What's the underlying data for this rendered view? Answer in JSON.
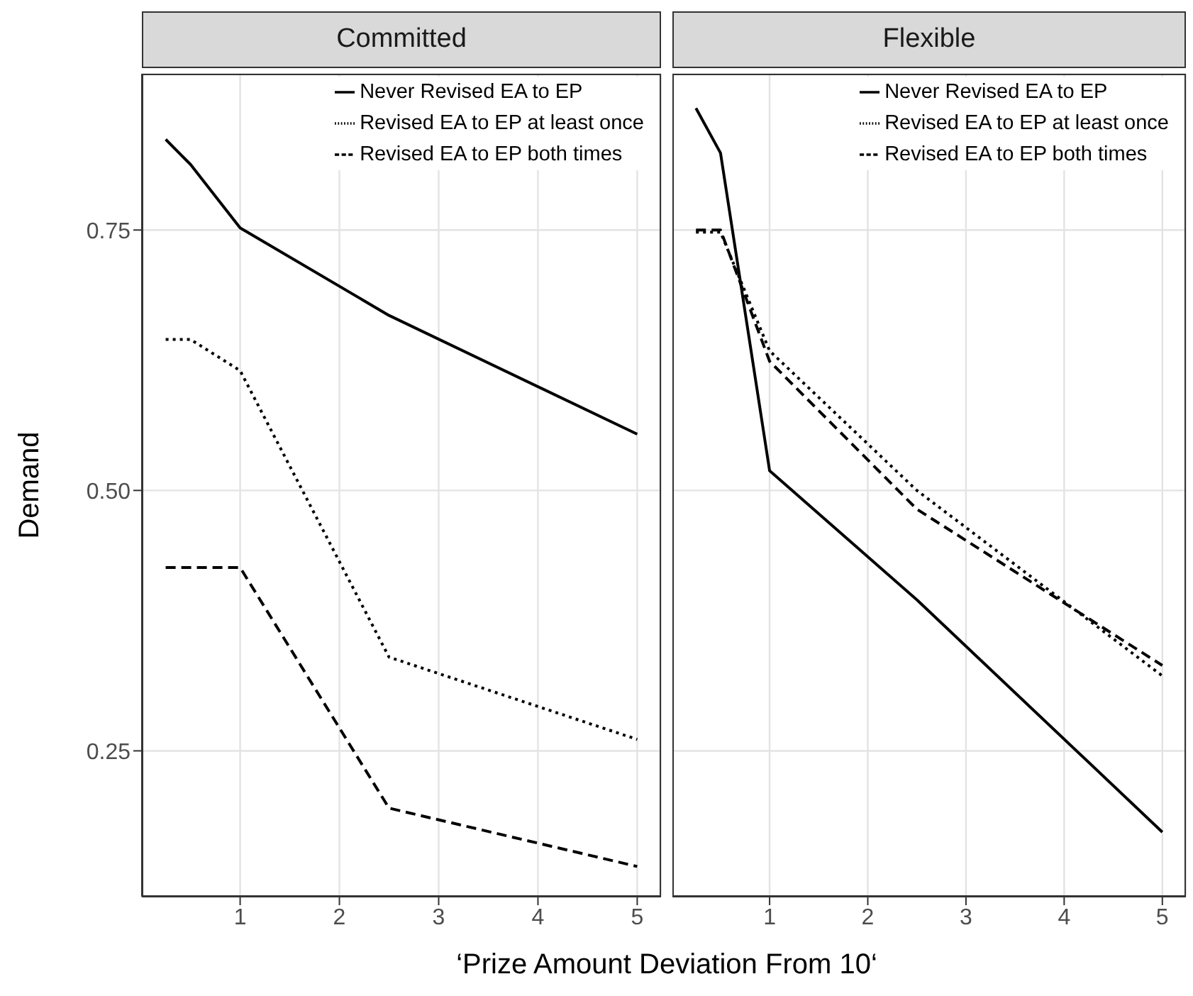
{
  "chart_data": [
    {
      "type": "line",
      "title": "Committed",
      "ylabel": "Demand",
      "xlabel": "‘Prize Amount Deviation From 10‘",
      "x": [
        0.25,
        0.5,
        1,
        2.5,
        5
      ],
      "xlim": [
        0.01,
        5.24
      ],
      "xticks": [
        1,
        2,
        3,
        4,
        5
      ],
      "ylim": [
        0.11,
        0.9
      ],
      "yticks": [
        {
          "value": 0.25,
          "label": "0.25"
        },
        {
          "value": 0.5,
          "label": "0.50"
        },
        {
          "value": 0.75,
          "label": "0.75"
        }
      ],
      "grid": true,
      "legend": "top right",
      "marker": "none",
      "series": [
        {
          "name": "Never Revised EA to EP",
          "color": "#000000",
          "line_style": "solid",
          "values": [
            0.837,
            0.813,
            0.752,
            0.668,
            0.554
          ]
        },
        {
          "name": "Revised EA to EP at least once",
          "color": "#000000",
          "line_style": "dotted",
          "values": [
            0.645,
            0.645,
            0.615,
            0.34,
            0.261
          ]
        },
        {
          "name": "Revised EA to EP both times",
          "color": "#000000",
          "line_style": "dashed",
          "values": [
            0.426,
            0.426,
            0.426,
            0.195,
            0.139
          ]
        }
      ]
    },
    {
      "type": "line",
      "title": "Flexible",
      "x": [
        0.25,
        0.5,
        1,
        2.5,
        5
      ],
      "xlim": [
        0.01,
        5.24
      ],
      "xticks": [
        1,
        2,
        3,
        4,
        5
      ],
      "ylim": [
        0.11,
        0.9
      ],
      "yticks": [
        {
          "value": 0.25,
          "label": null
        },
        {
          "value": 0.5,
          "label": null
        },
        {
          "value": 0.75,
          "label": null
        }
      ],
      "grid": true,
      "legend": "top right",
      "marker": "none",
      "tick_labels": "x",
      "series": [
        {
          "name": "Never Revised EA to EP",
          "color": "#000000",
          "line_style": "solid",
          "values": [
            0.867,
            0.824,
            0.519,
            0.395,
            0.172
          ]
        },
        {
          "name": "Revised EA to EP at least once",
          "color": "#000000",
          "line_style": "dotted",
          "values": [
            0.748,
            0.748,
            0.634,
            0.5,
            0.322
          ]
        },
        {
          "name": "Revised EA to EP both times",
          "color": "#000000",
          "line_style": "dashed",
          "values": [
            0.75,
            0.75,
            0.624,
            0.482,
            0.332
          ]
        }
      ]
    }
  ]
}
